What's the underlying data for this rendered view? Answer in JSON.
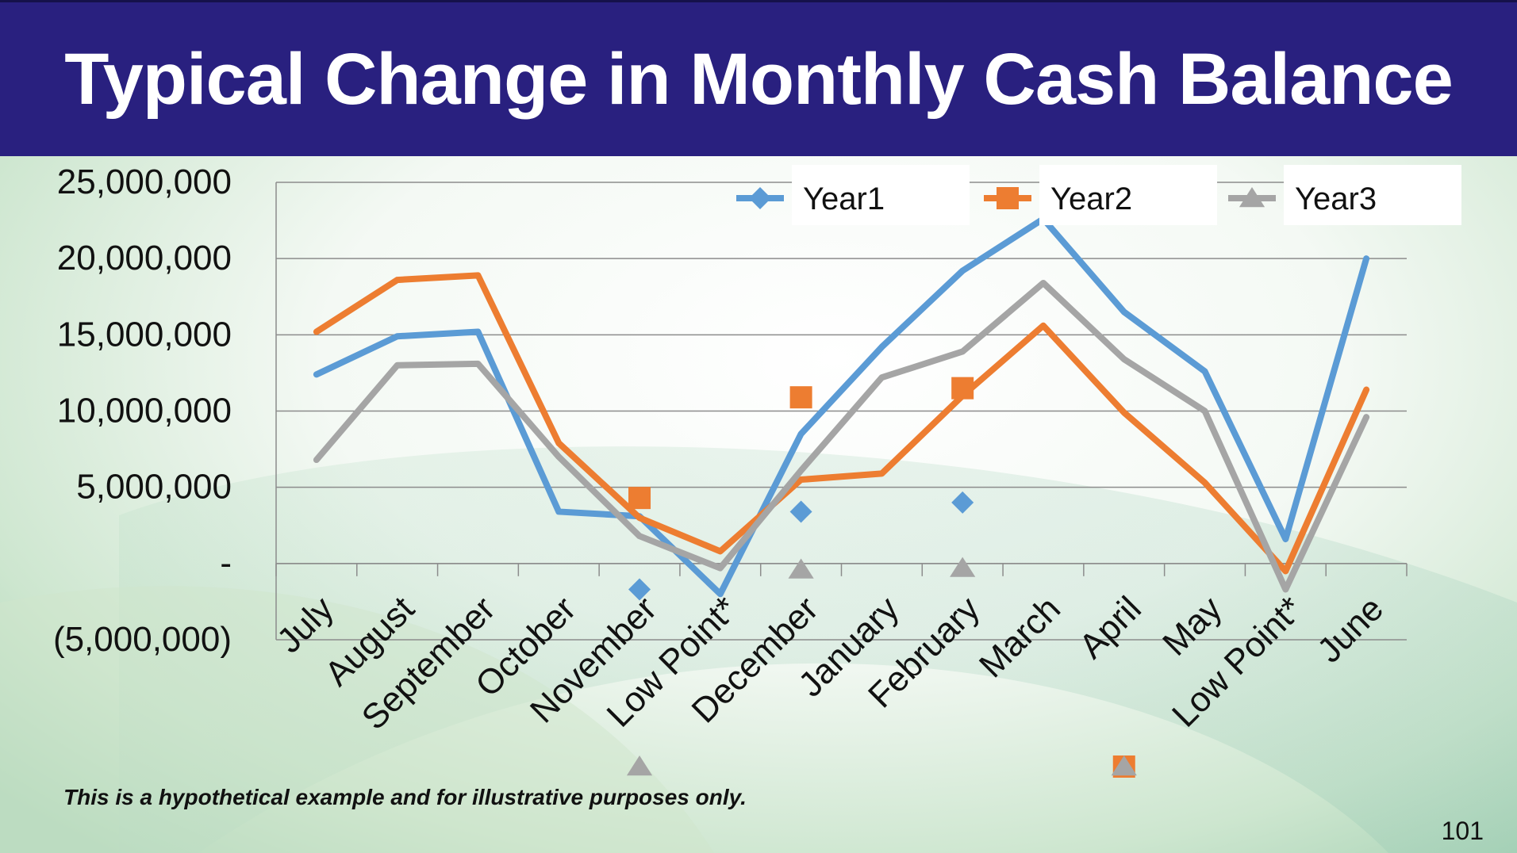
{
  "slide": {
    "title": "Typical Change in Monthly Cash Balance",
    "footnote": "This is a hypothetical example and for illustrative purposes only.",
    "page_number": "101"
  },
  "colors": {
    "title_bar": "#29207f",
    "year1": "#5b9bd5",
    "year2": "#ed7d31",
    "year3": "#a5a5a5"
  },
  "chart_data": {
    "type": "line",
    "title": "",
    "xlabel": "",
    "ylabel": "",
    "ylim": [
      -5000000,
      25000000
    ],
    "yticks": [
      {
        "value": 25000000,
        "label": "25,000,000"
      },
      {
        "value": 20000000,
        "label": "20,000,000"
      },
      {
        "value": 15000000,
        "label": "15,000,000"
      },
      {
        "value": 10000000,
        "label": "10,000,000"
      },
      {
        "value": 5000000,
        "label": "5,000,000"
      },
      {
        "value": 0,
        "label": "-"
      },
      {
        "value": -5000000,
        "label": "(5,000,000)"
      }
    ],
    "categories": [
      "July",
      "August",
      "September",
      "October",
      "November",
      "Low Point*",
      "December",
      "January",
      "February",
      "March",
      "April",
      "May",
      "Low Point*",
      "June"
    ],
    "legend_position": "top-right",
    "series": [
      {
        "name": "Year1",
        "color_key": "year1",
        "marker": "diamond",
        "values": [
          12400000,
          14900000,
          15200000,
          3400000,
          3100000,
          -2000000,
          8500000,
          14200000,
          19200000,
          22600000,
          16500000,
          12600000,
          1600000,
          20000000
        ]
      },
      {
        "name": "Year2",
        "color_key": "year2",
        "marker": "square",
        "values": [
          15200000,
          18600000,
          18900000,
          7900000,
          3000000,
          800000,
          5500000,
          5900000,
          11000000,
          15600000,
          9900000,
          5300000,
          -500000,
          11400000
        ]
      },
      {
        "name": "Year3",
        "color_key": "year3",
        "marker": "triangle",
        "values": [
          6800000,
          13000000,
          13100000,
          7000000,
          1800000,
          -300000,
          6100000,
          12200000,
          13900000,
          18400000,
          13400000,
          10000000,
          -1700000,
          9600000
        ]
      }
    ],
    "stray_markers": [
      {
        "series": "Year1",
        "marker": "diamond",
        "x_index": 4,
        "value": -1700000
      },
      {
        "series": "Year1",
        "marker": "diamond",
        "x_index": 6,
        "value": 3400000
      },
      {
        "series": "Year1",
        "marker": "diamond",
        "x_index": 8,
        "value": 4000000
      },
      {
        "series": "Year2",
        "marker": "square",
        "x_index": 4,
        "value": 4300000
      },
      {
        "series": "Year2",
        "marker": "square",
        "x_index": 6,
        "value": 10900000
      },
      {
        "series": "Year2",
        "marker": "square",
        "x_index": 8,
        "value": 11500000
      },
      {
        "series": "Year3",
        "marker": "triangle",
        "x_index": 6,
        "value": -400000
      },
      {
        "series": "Year3",
        "marker": "triangle",
        "x_index": 8,
        "value": -300000
      }
    ],
    "below_axis_markers": [
      {
        "series": "Year3",
        "marker": "triangle",
        "x_index": 4
      },
      {
        "series": "Year2",
        "marker": "square",
        "x_index": 10
      },
      {
        "series": "Year3",
        "marker": "triangle",
        "x_index": 10
      }
    ]
  }
}
